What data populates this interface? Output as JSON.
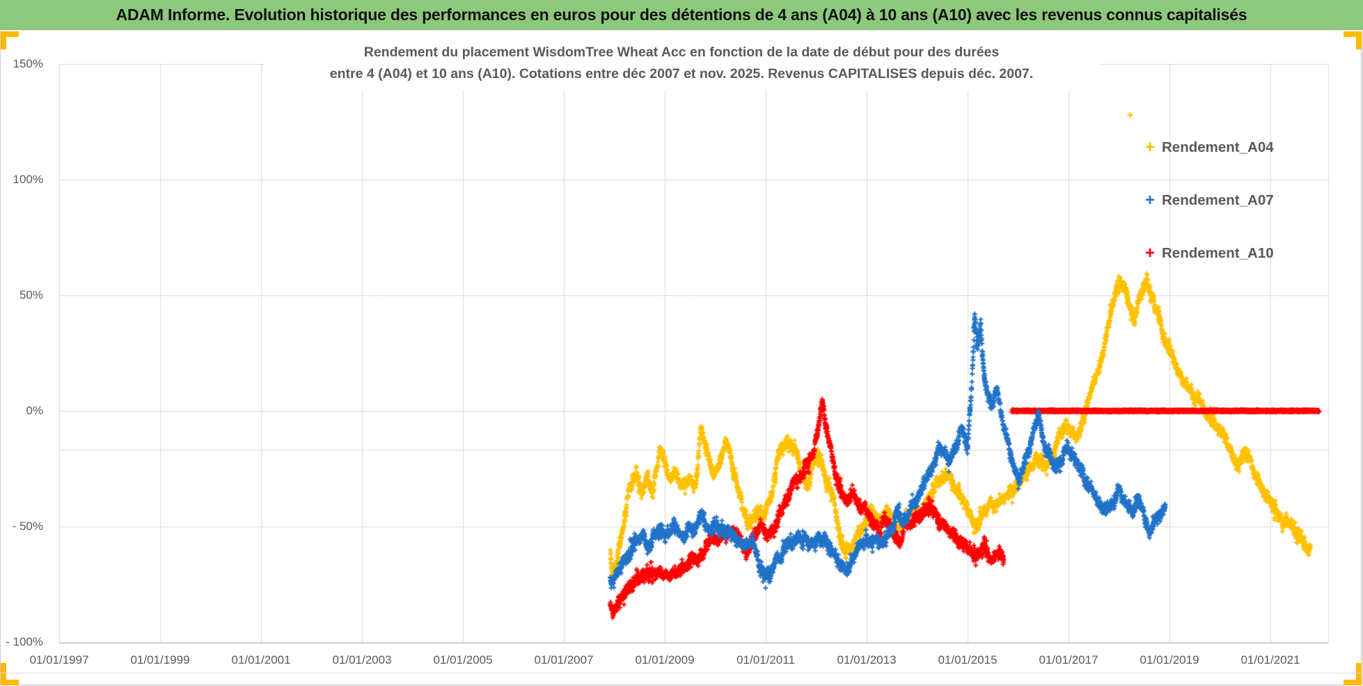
{
  "header": {
    "title": "ADAM Informe. Evolution historique des performances en euros pour des détentions de 4 ans (A04) à 10 ans (A10) avec les revenus connus capitalisés",
    "bg_color": "#8CC97C"
  },
  "handles_color": "#FFB900",
  "chart_data": {
    "type": "scatter",
    "title_line1": "Rendement du placement WisdomTree Wheat Acc en fonction de la date de début pour des durées",
    "title_line2": "entre 4 (A04) et 10 ans (A10). Cotations entre déc 2007 et nov. 2025. Revenus CAPITALISES depuis déc. 2007.",
    "xlabel": "",
    "ylabel": "",
    "grid": true,
    "legend_position": "right",
    "x_axis": {
      "tick_labels": [
        "01/01/1997",
        "01/01/1999",
        "01/01/2001",
        "01/01/2003",
        "01/01/2005",
        "01/01/2007",
        "01/01/2009",
        "01/01/2011",
        "01/01/2013",
        "01/01/2015",
        "01/01/2017",
        "01/01/2019",
        "01/01/2021"
      ],
      "tick_years": [
        1997,
        1999,
        2001,
        2003,
        2005,
        2007,
        2009,
        2011,
        2013,
        2015,
        2017,
        2019,
        2021
      ],
      "min_year": 1997,
      "max_year": 2022.15
    },
    "y_axis": {
      "tick_labels": [
        "150%",
        "100%",
        "50%",
        "0%",
        "- 50%",
        "- 100%"
      ],
      "tick_values": [
        150,
        100,
        50,
        0,
        -50,
        -100
      ],
      "min": -100,
      "max": 150,
      "extra_gridline_value": -17
    },
    "series": [
      {
        "name": "Rendement_A04",
        "color": "#FFC000",
        "marker": "plus",
        "anchors": [
          [
            2007.92,
            -60
          ],
          [
            2007.97,
            -70
          ],
          [
            2008.05,
            -63
          ],
          [
            2008.15,
            -54
          ],
          [
            2008.3,
            -33
          ],
          [
            2008.45,
            -28
          ],
          [
            2008.55,
            -33
          ],
          [
            2008.65,
            -27
          ],
          [
            2008.75,
            -35
          ],
          [
            2008.9,
            -17
          ],
          [
            2009.0,
            -22
          ],
          [
            2009.1,
            -32
          ],
          [
            2009.2,
            -28
          ],
          [
            2009.35,
            -34
          ],
          [
            2009.5,
            -28
          ],
          [
            2009.6,
            -33
          ],
          [
            2009.72,
            -9
          ],
          [
            2009.85,
            -18
          ],
          [
            2009.95,
            -28
          ],
          [
            2010.1,
            -22
          ],
          [
            2010.22,
            -11
          ],
          [
            2010.35,
            -25
          ],
          [
            2010.5,
            -38
          ],
          [
            2010.65,
            -50
          ],
          [
            2010.8,
            -45
          ],
          [
            2010.95,
            -43
          ],
          [
            2011.1,
            -38
          ],
          [
            2011.25,
            -20
          ],
          [
            2011.4,
            -13
          ],
          [
            2011.55,
            -14
          ],
          [
            2011.7,
            -25
          ],
          [
            2011.85,
            -33
          ],
          [
            2011.95,
            -20
          ],
          [
            2012.05,
            -16
          ],
          [
            2012.2,
            -30
          ],
          [
            2012.35,
            -38
          ],
          [
            2012.5,
            -57
          ],
          [
            2012.65,
            -60
          ],
          [
            2012.8,
            -55
          ],
          [
            2012.95,
            -50
          ],
          [
            2013.1,
            -42
          ],
          [
            2013.25,
            -48
          ],
          [
            2013.4,
            -41
          ],
          [
            2013.55,
            -48
          ],
          [
            2013.7,
            -50
          ],
          [
            2013.85,
            -47
          ],
          [
            2014.0,
            -43
          ],
          [
            2014.2,
            -40
          ],
          [
            2014.4,
            -31
          ],
          [
            2014.6,
            -27
          ],
          [
            2014.75,
            -32
          ],
          [
            2014.9,
            -38
          ],
          [
            2015.0,
            -44
          ],
          [
            2015.15,
            -48
          ],
          [
            2015.3,
            -44
          ],
          [
            2015.45,
            -40
          ],
          [
            2015.6,
            -42
          ],
          [
            2015.75,
            -38
          ],
          [
            2015.9,
            -36
          ],
          [
            2016.05,
            -31
          ],
          [
            2016.2,
            -26
          ],
          [
            2016.35,
            -20
          ],
          [
            2016.5,
            -25
          ],
          [
            2016.65,
            -22
          ],
          [
            2016.8,
            -12
          ],
          [
            2016.95,
            -8
          ],
          [
            2017.1,
            -13
          ],
          [
            2017.25,
            -8
          ],
          [
            2017.35,
            2
          ],
          [
            2017.5,
            12
          ],
          [
            2017.65,
            22
          ],
          [
            2017.8,
            38
          ],
          [
            2017.95,
            52
          ],
          [
            2018.05,
            58
          ],
          [
            2018.18,
            46
          ],
          [
            2018.3,
            38
          ],
          [
            2018.42,
            50
          ],
          [
            2018.55,
            58
          ],
          [
            2018.65,
            50
          ],
          [
            2018.78,
            40
          ],
          [
            2018.9,
            32
          ],
          [
            2019.0,
            26
          ],
          [
            2019.15,
            18
          ],
          [
            2019.3,
            12
          ],
          [
            2019.45,
            8
          ],
          [
            2019.6,
            4
          ],
          [
            2019.75,
            0
          ],
          [
            2019.9,
            -4
          ],
          [
            2020.05,
            -9
          ],
          [
            2020.2,
            -16
          ],
          [
            2020.35,
            -22
          ],
          [
            2020.5,
            -18
          ],
          [
            2020.65,
            -25
          ],
          [
            2020.8,
            -32
          ],
          [
            2020.95,
            -38
          ],
          [
            2021.1,
            -43
          ],
          [
            2021.25,
            -47
          ],
          [
            2021.4,
            -50
          ],
          [
            2021.55,
            -54
          ],
          [
            2021.7,
            -57
          ],
          [
            2021.8,
            -58
          ]
        ],
        "outlier_points": [
          [
            2018.22,
            128
          ]
        ]
      },
      {
        "name": "Rendement_A07",
        "color": "#2273C8",
        "marker": "plus",
        "anchors": [
          [
            2007.92,
            -72
          ],
          [
            2008.0,
            -75
          ],
          [
            2008.1,
            -70
          ],
          [
            2008.25,
            -63
          ],
          [
            2008.4,
            -58
          ],
          [
            2008.55,
            -55
          ],
          [
            2008.7,
            -57
          ],
          [
            2008.85,
            -52
          ],
          [
            2009.0,
            -54
          ],
          [
            2009.15,
            -51
          ],
          [
            2009.3,
            -53
          ],
          [
            2009.45,
            -50
          ],
          [
            2009.6,
            -52
          ],
          [
            2009.73,
            -45
          ],
          [
            2009.85,
            -50
          ],
          [
            2010.0,
            -48
          ],
          [
            2010.15,
            -50
          ],
          [
            2010.3,
            -52
          ],
          [
            2010.45,
            -55
          ],
          [
            2010.6,
            -57
          ],
          [
            2010.75,
            -56
          ],
          [
            2010.9,
            -68
          ],
          [
            2011.0,
            -73
          ],
          [
            2011.1,
            -71
          ],
          [
            2011.2,
            -67
          ],
          [
            2011.35,
            -60
          ],
          [
            2011.5,
            -56
          ],
          [
            2011.65,
            -53
          ],
          [
            2011.8,
            -55
          ],
          [
            2011.95,
            -56
          ],
          [
            2012.1,
            -56
          ],
          [
            2012.25,
            -58
          ],
          [
            2012.4,
            -64
          ],
          [
            2012.55,
            -69
          ],
          [
            2012.7,
            -65
          ],
          [
            2012.85,
            -60
          ],
          [
            2013.0,
            -57
          ],
          [
            2013.15,
            -55
          ],
          [
            2013.3,
            -58
          ],
          [
            2013.45,
            -53
          ],
          [
            2013.6,
            -46
          ],
          [
            2013.75,
            -50
          ],
          [
            2013.9,
            -40
          ],
          [
            2014.05,
            -36
          ],
          [
            2014.2,
            -30
          ],
          [
            2014.35,
            -22
          ],
          [
            2014.5,
            -16
          ],
          [
            2014.62,
            -22
          ],
          [
            2014.75,
            -15
          ],
          [
            2014.88,
            -8
          ],
          [
            2015.0,
            -16
          ],
          [
            2015.08,
            10
          ],
          [
            2015.14,
            43
          ],
          [
            2015.2,
            28
          ],
          [
            2015.26,
            38
          ],
          [
            2015.32,
            18
          ],
          [
            2015.4,
            8
          ],
          [
            2015.5,
            3
          ],
          [
            2015.58,
            10
          ],
          [
            2015.66,
            -2
          ],
          [
            2015.75,
            -10
          ],
          [
            2015.85,
            -18
          ],
          [
            2015.95,
            -25
          ],
          [
            2016.05,
            -28
          ],
          [
            2016.15,
            -20
          ],
          [
            2016.28,
            -12
          ],
          [
            2016.4,
            -4
          ],
          [
            2016.5,
            -14
          ],
          [
            2016.62,
            -19
          ],
          [
            2016.75,
            -25
          ],
          [
            2016.88,
            -20
          ],
          [
            2017.0,
            -14
          ],
          [
            2017.12,
            -20
          ],
          [
            2017.25,
            -27
          ],
          [
            2017.4,
            -32
          ],
          [
            2017.55,
            -37
          ],
          [
            2017.7,
            -43
          ],
          [
            2017.85,
            -38
          ],
          [
            2018.0,
            -33
          ],
          [
            2018.12,
            -40
          ],
          [
            2018.25,
            -44
          ],
          [
            2018.38,
            -37
          ],
          [
            2018.5,
            -47
          ],
          [
            2018.62,
            -52
          ],
          [
            2018.72,
            -48
          ],
          [
            2018.82,
            -44
          ],
          [
            2018.92,
            -41
          ]
        ],
        "outlier_points": []
      },
      {
        "name": "Rendement_A10",
        "color": "#FF0000",
        "marker": "plus",
        "anchors": [
          [
            2007.92,
            -85
          ],
          [
            2008.0,
            -87
          ],
          [
            2008.1,
            -83
          ],
          [
            2008.2,
            -80
          ],
          [
            2008.35,
            -76
          ],
          [
            2008.5,
            -72
          ],
          [
            2008.6,
            -69
          ],
          [
            2008.75,
            -71
          ],
          [
            2008.9,
            -69
          ],
          [
            2009.0,
            -72
          ],
          [
            2009.1,
            -70
          ],
          [
            2009.25,
            -69
          ],
          [
            2009.4,
            -67
          ],
          [
            2009.55,
            -64
          ],
          [
            2009.7,
            -61
          ],
          [
            2009.85,
            -57
          ],
          [
            2010.0,
            -55
          ],
          [
            2010.15,
            -52
          ],
          [
            2010.3,
            -50
          ],
          [
            2010.45,
            -55
          ],
          [
            2010.6,
            -59
          ],
          [
            2010.75,
            -55
          ],
          [
            2010.9,
            -52
          ],
          [
            2011.05,
            -55
          ],
          [
            2011.2,
            -50
          ],
          [
            2011.35,
            -42
          ],
          [
            2011.5,
            -33
          ],
          [
            2011.65,
            -29
          ],
          [
            2011.8,
            -25
          ],
          [
            2011.95,
            -16
          ],
          [
            2012.05,
            -5
          ],
          [
            2012.12,
            3
          ],
          [
            2012.18,
            -3
          ],
          [
            2012.25,
            -12
          ],
          [
            2012.35,
            -25
          ],
          [
            2012.45,
            -33
          ],
          [
            2012.55,
            -38
          ],
          [
            2012.7,
            -36
          ],
          [
            2012.85,
            -40
          ],
          [
            2013.0,
            -44
          ],
          [
            2013.1,
            -49
          ],
          [
            2013.25,
            -52
          ],
          [
            2013.35,
            -47
          ],
          [
            2013.5,
            -52
          ],
          [
            2013.65,
            -56
          ],
          [
            2013.8,
            -50
          ],
          [
            2013.95,
            -47
          ],
          [
            2014.1,
            -44
          ],
          [
            2014.25,
            -42
          ],
          [
            2014.4,
            -46
          ],
          [
            2014.55,
            -50
          ],
          [
            2014.7,
            -55
          ],
          [
            2014.85,
            -58
          ],
          [
            2015.0,
            -60
          ],
          [
            2015.15,
            -63
          ],
          [
            2015.3,
            -60
          ],
          [
            2015.45,
            -63
          ],
          [
            2015.6,
            -60
          ],
          [
            2015.72,
            -63
          ]
        ],
        "outlier_points": [],
        "flat_segment": {
          "from_year": 2015.87,
          "to_year": 2021.97,
          "value": 0
        }
      }
    ],
    "legend": [
      {
        "label": "Rendement_A04",
        "color": "#FFC000"
      },
      {
        "label": "Rendement_A07",
        "color": "#2273C8"
      },
      {
        "label": "Rendement_A10",
        "color": "#FF0000"
      }
    ]
  }
}
